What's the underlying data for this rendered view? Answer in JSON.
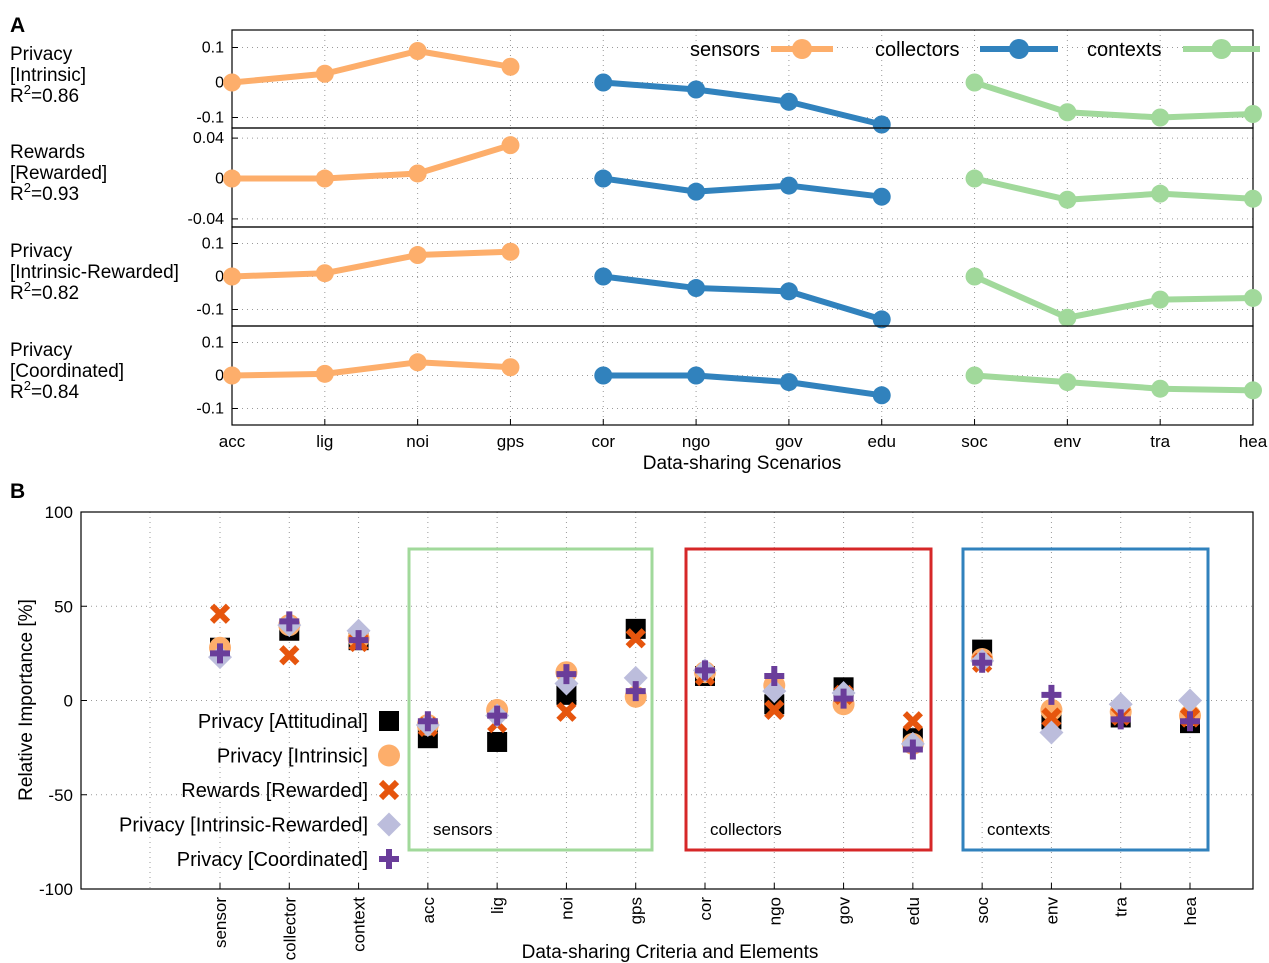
{
  "panel_a": {
    "letter": "A",
    "xlabel": "Data-sharing Scenarios",
    "categories": [
      "acc",
      "lig",
      "noi",
      "gps",
      "cor",
      "ngo",
      "gov",
      "edu",
      "soc",
      "env",
      "tra",
      "hea"
    ],
    "legend": [
      "sensors",
      "collectors",
      "contexts"
    ],
    "colors": {
      "sensors": "#fdae6b",
      "collectors": "#3182bd",
      "contexts": "#a1d99b"
    }
  },
  "panel_b": {
    "letter": "B",
    "xlabel": "Data-sharing Criteria and Elements",
    "ylabel": "Relative Importance [%]",
    "categories": [
      "sensor",
      "collector",
      "context",
      "acc",
      "lig",
      "noi",
      "gps",
      "cor",
      "ngo",
      "gov",
      "edu",
      "soc",
      "env",
      "tra",
      "hea"
    ],
    "box_labels": [
      "sensors",
      "collectors",
      "contexts"
    ],
    "box_colors": [
      "#a1d99b",
      "#d62728",
      "#3182bd"
    ],
    "legend": [
      "Privacy [Attitudinal]",
      "Privacy [Intrinsic]",
      "Rewards [Rewarded]",
      "Privacy [Intrinsic-Rewarded]",
      "Privacy [Coordinated]"
    ],
    "marker_colors": [
      "#000000",
      "#fdae6b",
      "#e6550d",
      "#bcbddc",
      "#6a3d9a"
    ]
  },
  "chart_data": [
    {
      "type": "line",
      "panel": "A",
      "categories": [
        "acc",
        "lig",
        "noi",
        "gps",
        "cor",
        "ngo",
        "gov",
        "edu",
        "soc",
        "env",
        "tra",
        "hea"
      ],
      "subplots": [
        {
          "label": [
            "Privacy",
            "[Intrinsic]",
            "R²=0.86"
          ],
          "ylim": [
            -0.13,
            0.15
          ],
          "ticks": [
            0.1,
            0,
            -0.1
          ],
          "tick_labels": [
            "0.1",
            "0",
            "-0.1"
          ],
          "series": [
            {
              "name": "sensors",
              "values": [
                0.0,
                0.025,
                0.09,
                0.045,
                null,
                null,
                null,
                null,
                null,
                null,
                null,
                null
              ]
            },
            {
              "name": "collectors",
              "values": [
                null,
                null,
                null,
                null,
                0.0,
                -0.02,
                -0.055,
                -0.12,
                null,
                null,
                null,
                null
              ]
            },
            {
              "name": "contexts",
              "values": [
                null,
                null,
                null,
                null,
                null,
                null,
                null,
                null,
                0.0,
                -0.085,
                -0.1,
                -0.09
              ]
            }
          ]
        },
        {
          "label": [
            "Rewards",
            "[Rewarded]",
            "R²=0.93"
          ],
          "ylim": [
            -0.048,
            0.05
          ],
          "ticks": [
            0.04,
            0,
            -0.04
          ],
          "tick_labels": [
            "0.04",
            "0",
            "-0.04"
          ],
          "series": [
            {
              "name": "sensors",
              "values": [
                0.0,
                0.0,
                0.005,
                0.033,
                null,
                null,
                null,
                null,
                null,
                null,
                null,
                null
              ]
            },
            {
              "name": "collectors",
              "values": [
                null,
                null,
                null,
                null,
                0.0,
                -0.013,
                -0.007,
                -0.018,
                null,
                null,
                null,
                null
              ]
            },
            {
              "name": "contexts",
              "values": [
                null,
                null,
                null,
                null,
                null,
                null,
                null,
                null,
                0.0,
                -0.021,
                -0.015,
                -0.02
              ]
            }
          ]
        },
        {
          "label": [
            "Privacy",
            "[Intrinsic-Rewarded]",
            "R²=0.82"
          ],
          "ylim": [
            -0.15,
            0.15
          ],
          "ticks": [
            0.1,
            0,
            -0.1
          ],
          "tick_labels": [
            "0.1",
            "0",
            "-0.1"
          ],
          "series": [
            {
              "name": "sensors",
              "values": [
                0.0,
                0.01,
                0.065,
                0.075,
                null,
                null,
                null,
                null,
                null,
                null,
                null,
                null
              ]
            },
            {
              "name": "collectors",
              "values": [
                null,
                null,
                null,
                null,
                0.0,
                -0.035,
                -0.045,
                -0.13,
                null,
                null,
                null,
                null
              ]
            },
            {
              "name": "contexts",
              "values": [
                null,
                null,
                null,
                null,
                null,
                null,
                null,
                null,
                0.0,
                -0.125,
                -0.07,
                -0.065
              ]
            }
          ]
        },
        {
          "label": [
            "Privacy",
            "[Coordinated]",
            "R²=0.84"
          ],
          "ylim": [
            -0.15,
            0.15
          ],
          "ticks": [
            0.1,
            0,
            -0.1
          ],
          "tick_labels": [
            "0.1",
            "0",
            "-0.1"
          ],
          "series": [
            {
              "name": "sensors",
              "values": [
                0.0,
                0.005,
                0.04,
                0.025,
                null,
                null,
                null,
                null,
                null,
                null,
                null,
                null
              ]
            },
            {
              "name": "collectors",
              "values": [
                null,
                null,
                null,
                null,
                0.0,
                0.0,
                -0.02,
                -0.06,
                null,
                null,
                null,
                null
              ]
            },
            {
              "name": "contexts",
              "values": [
                null,
                null,
                null,
                null,
                null,
                null,
                null,
                null,
                0.0,
                -0.02,
                -0.04,
                -0.045
              ]
            }
          ]
        }
      ]
    },
    {
      "type": "scatter",
      "panel": "B",
      "categories": [
        "sensor",
        "collector",
        "context",
        "acc",
        "lig",
        "noi",
        "gps",
        "cor",
        "ngo",
        "gov",
        "edu",
        "soc",
        "env",
        "tra",
        "hea"
      ],
      "ylim": [
        -100,
        100
      ],
      "yticks": [
        100,
        50,
        0,
        -50,
        -100
      ],
      "ytick_labels": [
        "100",
        "50",
        "0",
        "-50",
        "-100"
      ],
      "xlabel": "Data-sharing Criteria and Elements",
      "ylabel": "Relative Importance [%]",
      "series": [
        {
          "name": "Privacy [Attitudinal]",
          "values": [
            28,
            37,
            32,
            -20,
            -22,
            3,
            38,
            13,
            -2,
            7,
            -20,
            27,
            -10,
            -9,
            -12
          ]
        },
        {
          "name": "Privacy [Intrinsic]",
          "values": [
            28,
            40,
            33,
            -13,
            -5,
            15,
            2,
            15,
            8,
            -2,
            -23,
            22,
            -5,
            -6,
            -8
          ]
        },
        {
          "name": "Rewards [Rewarded]",
          "values": [
            46,
            24,
            31,
            -14,
            -12,
            -6,
            33,
            13,
            -5,
            3,
            -11,
            20,
            -9,
            -8,
            -9
          ]
        },
        {
          "name": "Privacy [Intrinsic-Rewarded]",
          "values": [
            23,
            40,
            37,
            -13,
            -8,
            9,
            12,
            16,
            5,
            4,
            -23,
            21,
            -17,
            -2,
            0
          ]
        },
        {
          "name": "Privacy [Coordinated]",
          "values": [
            25,
            42,
            32,
            -11,
            -8,
            14,
            5,
            16,
            13,
            1,
            -26,
            20,
            3,
            -10,
            -11
          ]
        }
      ]
    }
  ]
}
